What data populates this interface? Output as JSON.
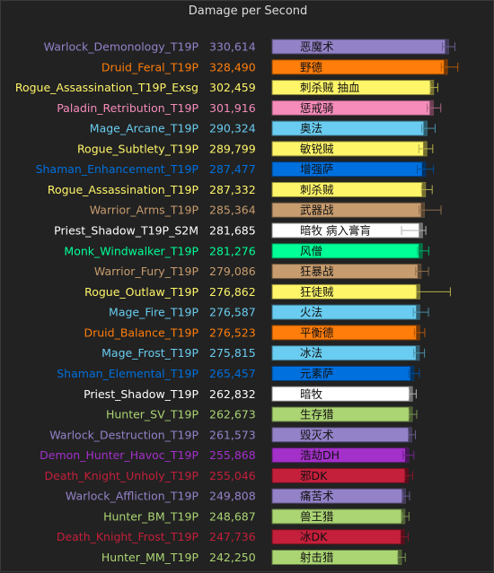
{
  "chart_data": {
    "type": "bar",
    "orientation": "horizontal",
    "title": "Damage per Second",
    "grid": false,
    "legend": "none",
    "xlim": [
      0,
      335000
    ],
    "rows": [
      {
        "name": "Warlock_Demonology_T19P",
        "value": 330614,
        "value_label": "330,614",
        "bar_label": "恶魔术",
        "color": "#9482c9",
        "err_low": 319000,
        "err_high": 342500
      },
      {
        "name": "Druid_Feral_T19P",
        "value": 328490,
        "value_label": "328,490",
        "bar_label": "野德",
        "color": "#ff7d0a",
        "err_low": 317000,
        "err_high": 348000
      },
      {
        "name": "Rogue_Assassination_T19P_Exsg",
        "value": 302459,
        "value_label": "302,459",
        "bar_label": "刺杀贼 抽血",
        "color": "#fff569",
        "err_low": 296500,
        "err_high": 310500
      },
      {
        "name": "Paladin_Retribution_T19P",
        "value": 301916,
        "value_label": "301,916",
        "bar_label": "惩戒骑",
        "color": "#f58cba",
        "err_low": 290500,
        "err_high": 316000
      },
      {
        "name": "Mage_Arcane_T19P",
        "value": 290324,
        "value_label": "290,324",
        "bar_label": "奥法",
        "color": "#69ccf0",
        "err_low": 280500,
        "err_high": 305500
      },
      {
        "name": "Rogue_Subtlety_T19P",
        "value": 289799,
        "value_label": "289,799",
        "bar_label": "敏锐贼",
        "color": "#fff569",
        "err_low": 275000,
        "err_high": 301000
      },
      {
        "name": "Shaman_Enhancement_T19P",
        "value": 287477,
        "value_label": "287,477",
        "bar_label": "增强萨",
        "color": "#0070de",
        "err_low": 272000,
        "err_high": 302500
      },
      {
        "name": "Rogue_Assassination_T19P",
        "value": 287332,
        "value_label": "287,332",
        "bar_label": "刺杀贼",
        "color": "#fff569",
        "err_low": 280000,
        "err_high": 300000
      },
      {
        "name": "Warrior_Arms_T19P",
        "value": 285364,
        "value_label": "285,364",
        "bar_label": "武器战",
        "color": "#c79c6e",
        "err_low": 275500,
        "err_high": 316500
      },
      {
        "name": "Priest_Shadow_T19P_S2M",
        "value": 281685,
        "value_label": "281,685",
        "bar_label": "暗牧 病入膏肓",
        "color": "#ffffff",
        "err_low": 242500,
        "err_high": 288000
      },
      {
        "name": "Monk_Windwalker_T19P",
        "value": 281276,
        "value_label": "281,276",
        "bar_label": "风僧",
        "color": "#00ff96",
        "err_low": 272500,
        "err_high": 293500
      },
      {
        "name": "Warrior_Fury_T19P",
        "value": 279086,
        "value_label": "279,086",
        "bar_label": "狂暴战",
        "color": "#c79c6e",
        "err_low": 269000,
        "err_high": 293000
      },
      {
        "name": "Rogue_Outlaw_T19P",
        "value": 276862,
        "value_label": "276,862",
        "bar_label": "狂徒贼",
        "color": "#fff569",
        "err_low": 270500,
        "err_high": 334000
      },
      {
        "name": "Mage_Fire_T19P",
        "value": 276587,
        "value_label": "276,587",
        "bar_label": "火法",
        "color": "#69ccf0",
        "err_low": 264500,
        "err_high": 293000
      },
      {
        "name": "Druid_Balance_T19P",
        "value": 276523,
        "value_label": "276,523",
        "bar_label": "平衡德",
        "color": "#ff7d0a",
        "err_low": 266500,
        "err_high": 286000
      },
      {
        "name": "Mage_Frost_T19P",
        "value": 275815,
        "value_label": "275,815",
        "bar_label": "冰法",
        "color": "#69ccf0",
        "err_low": 265500,
        "err_high": 285500
      },
      {
        "name": "Shaman_Elemental_T19P",
        "value": 265457,
        "value_label": "265,457",
        "bar_label": "元素萨",
        "color": "#0070de",
        "err_low": 256000,
        "err_high": 276000
      },
      {
        "name": "Priest_Shadow_T19P",
        "value": 262832,
        "value_label": "262,832",
        "bar_label": "暗牧",
        "color": "#ffffff",
        "err_low": 257000,
        "err_high": 270000
      },
      {
        "name": "Hunter_SV_T19P",
        "value": 262673,
        "value_label": "262,673",
        "bar_label": "生存猎",
        "color": "#abd473",
        "err_low": 256500,
        "err_high": 271000
      },
      {
        "name": "Warlock_Destruction_T19P",
        "value": 261573,
        "value_label": "261,573",
        "bar_label": "毁灭术",
        "color": "#9482c9",
        "err_low": 255500,
        "err_high": 268500
      },
      {
        "name": "Demon_Hunter_Havoc_T19P",
        "value": 255868,
        "value_label": "255,868",
        "bar_label": "浩劫DH",
        "color": "#a330c9",
        "err_low": 245500,
        "err_high": 265500
      },
      {
        "name": "Death_Knight_Unholy_T19P",
        "value": 255046,
        "value_label": "255,046",
        "bar_label": "邪DK",
        "color": "#c41f3b",
        "err_low": 249000,
        "err_high": 263500
      },
      {
        "name": "Warlock_Affliction_T19P",
        "value": 249808,
        "value_label": "249,808",
        "bar_label": "痛苦术",
        "color": "#9482c9",
        "err_low": 244500,
        "err_high": 257500
      },
      {
        "name": "Hunter_BM_T19P",
        "value": 248687,
        "value_label": "248,687",
        "bar_label": "兽王猎",
        "color": "#abd473",
        "err_low": 244000,
        "err_high": 256500
      },
      {
        "name": "Death_Knight_Frost_T19P",
        "value": 247736,
        "value_label": "247,736",
        "bar_label": "冰DK",
        "color": "#c41f3b",
        "err_low": 241000,
        "err_high": 255000
      },
      {
        "name": "Hunter_MM_T19P",
        "value": 242250,
        "value_label": "242,250",
        "bar_label": "射击猎",
        "color": "#abd473",
        "err_low": 235500,
        "err_high": 249500
      }
    ]
  }
}
